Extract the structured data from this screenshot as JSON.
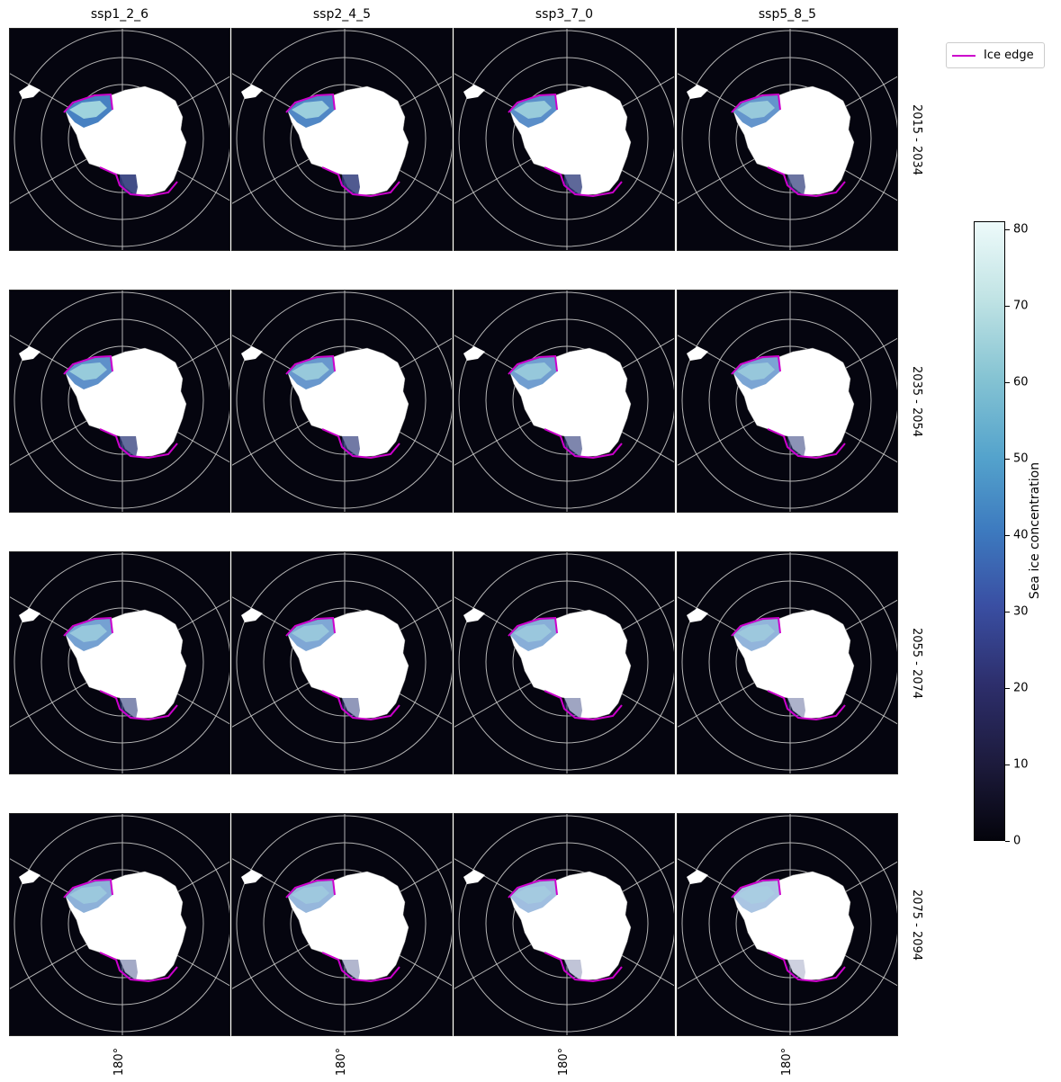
{
  "columns": [
    "ssp1_2_6",
    "ssp2_4_5",
    "ssp3_7_0",
    "ssp5_8_5"
  ],
  "rows": [
    "2015 - 2034",
    "2035 - 2054",
    "2055 - 2074",
    "2075 - 2094"
  ],
  "longitude_label": "180°",
  "legend": {
    "label": "Ice edge",
    "color": "#cc00cc"
  },
  "colorbar": {
    "label": "Sea ice concentration",
    "ticks": [
      "0",
      "10",
      "20",
      "30",
      "40",
      "50",
      "60",
      "70",
      "80"
    ],
    "range": [
      0,
      81
    ]
  },
  "colors": {
    "ocean": "#05050f",
    "land": "#ffffff",
    "graticule": "#b4b4b4",
    "ice_edge": "#cc00cc",
    "ice_high": "#a8dbe0",
    "ice_mid": "#3d7abf",
    "ice_low": "#2d3a7a"
  }
}
